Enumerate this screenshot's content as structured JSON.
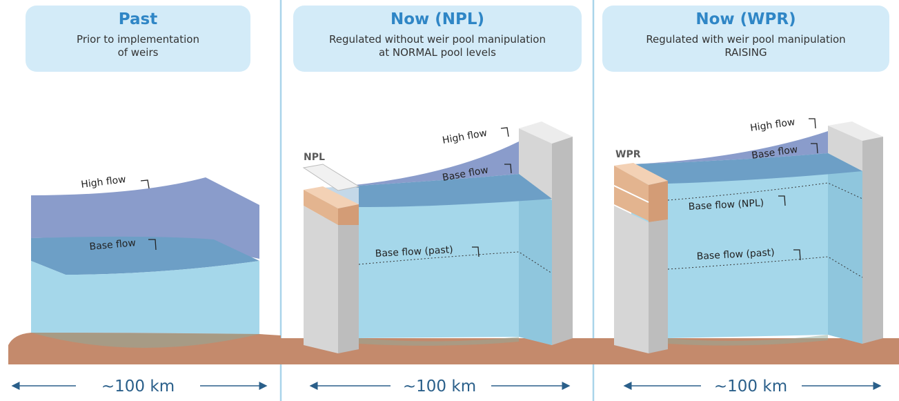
{
  "panels": [
    {
      "title": "Past",
      "subtitle": "Prior to implementation\nof weirs",
      "scale": "~100 km",
      "labels": {
        "high": "High flow",
        "base": "Base flow"
      }
    },
    {
      "title": "Now (NPL)",
      "subtitle": "Regulated without weir pool manipulation\nat NORMAL pool levels",
      "scale": "~100 km",
      "labels": {
        "weir": "NPL",
        "high": "High flow",
        "base": "Base flow",
        "base_past": "Base flow (past)"
      }
    },
    {
      "title": "Now (WPR)",
      "subtitle": "Regulated with weir pool manipulation\nRAISING",
      "scale": "~100 km",
      "labels": {
        "weir": "WPR",
        "high": "High flow",
        "base": "Base flow",
        "base_npl": "Base flow (NPL)",
        "base_past": "Base flow (past)"
      }
    }
  ],
  "colors": {
    "header_bg": "#d3ebf8",
    "title": "#2f86c6",
    "high_water": "#7f93c4",
    "base_water": "#a5d7ea",
    "riverbed": "#c48a6c",
    "weir": "#d6d6d6",
    "weir_cap": "#e3b48f",
    "divider": "#a9d4ea"
  }
}
